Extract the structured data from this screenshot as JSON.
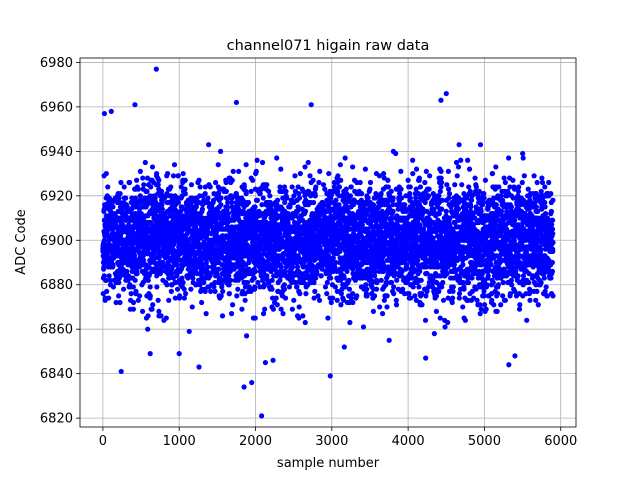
{
  "chart_data": {
    "type": "scatter",
    "title": "channel071 higain raw data",
    "xlabel": "sample number",
    "ylabel": "ADC Code",
    "xlim": [
      -300,
      6200
    ],
    "ylim": [
      6816,
      6982
    ],
    "xticks": [
      0,
      1000,
      2000,
      3000,
      4000,
      5000,
      6000
    ],
    "yticks": [
      6820,
      6840,
      6860,
      6880,
      6900,
      6920,
      6940,
      6960,
      6980
    ],
    "grid": true,
    "marker_color": "#0000ff",
    "series": [
      {
        "n_samples": 5900,
        "mean": 6900,
        "std_dev": 15,
        "outliers": [
          {
            "x": 700,
            "y": 6977
          },
          {
            "x": 420,
            "y": 6961
          },
          {
            "x": 1750,
            "y": 6962
          },
          {
            "x": 2730,
            "y": 6961
          },
          {
            "x": 4500,
            "y": 6966
          },
          {
            "x": 4430,
            "y": 6963
          },
          {
            "x": 110,
            "y": 6958
          },
          {
            "x": 20,
            "y": 6957
          },
          {
            "x": 240,
            "y": 6841
          },
          {
            "x": 1850,
            "y": 6834
          },
          {
            "x": 1950,
            "y": 6836
          },
          {
            "x": 2080,
            "y": 6821
          },
          {
            "x": 2980,
            "y": 6839
          },
          {
            "x": 5320,
            "y": 6844
          },
          {
            "x": 1260,
            "y": 6843
          },
          {
            "x": 4230,
            "y": 6847
          },
          {
            "x": 2130,
            "y": 6845
          },
          {
            "x": 2230,
            "y": 6846
          },
          {
            "x": 620,
            "y": 6849
          },
          {
            "x": 1000,
            "y": 6849
          },
          {
            "x": 5400,
            "y": 6848
          }
        ]
      }
    ]
  }
}
